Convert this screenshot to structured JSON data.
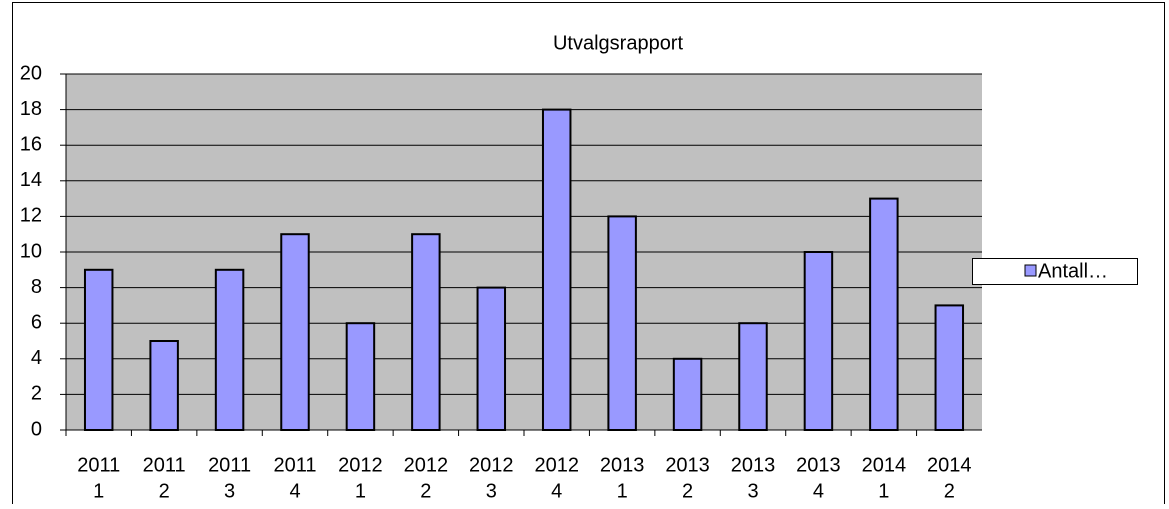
{
  "chart_data": {
    "type": "bar",
    "title": "Utvalgsrapport",
    "categories": [
      [
        "2011",
        "1"
      ],
      [
        "2011",
        "2"
      ],
      [
        "2011",
        "3"
      ],
      [
        "2011",
        "4"
      ],
      [
        "2012",
        "1"
      ],
      [
        "2012",
        "2"
      ],
      [
        "2012",
        "3"
      ],
      [
        "2012",
        "4"
      ],
      [
        "2013",
        "1"
      ],
      [
        "2013",
        "2"
      ],
      [
        "2013",
        "3"
      ],
      [
        "2013",
        "4"
      ],
      [
        "2014",
        "1"
      ],
      [
        "2014",
        "2"
      ]
    ],
    "series": [
      {
        "name": "Antall…",
        "color": "#9999ff",
        "values": [
          9,
          5,
          9,
          11,
          6,
          11,
          8,
          18,
          12,
          4,
          6,
          10,
          13,
          7
        ]
      }
    ],
    "ylim": [
      0,
      20
    ],
    "yticks": [
      0,
      2,
      4,
      6,
      8,
      10,
      12,
      14,
      16,
      18,
      20
    ],
    "grid": true,
    "legend": "right"
  }
}
